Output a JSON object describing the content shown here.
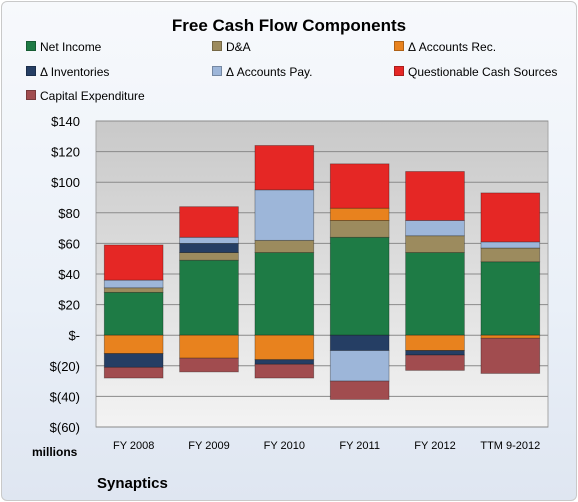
{
  "chart_data": {
    "type": "bar",
    "stacked": true,
    "title": "Free Cash Flow Components",
    "categories": [
      "FY 2008",
      "FY 2009",
      "FY 2010",
      "FY 2011",
      "FY 2012",
      "TTM 9-2012"
    ],
    "series": [
      {
        "name": "Net Income",
        "color": "#1e7b45",
        "values": [
          28,
          49,
          54,
          64,
          54,
          48
        ]
      },
      {
        "name": "D&A",
        "color": "#9c8b5e",
        "values": [
          3,
          5,
          8,
          11,
          11,
          9
        ]
      },
      {
        "name": "Δ Accounts Rec.",
        "color": "#e8821e",
        "values": [
          -12,
          -15,
          -16,
          8,
          -10,
          -2
        ]
      },
      {
        "name": "Δ Inventories",
        "color": "#253e64",
        "values": [
          -9,
          6,
          -3,
          -10,
          -3,
          0
        ]
      },
      {
        "name": "Δ Accounts Pay.",
        "color": "#9db6d9",
        "values": [
          5,
          4,
          33,
          -20,
          10,
          4
        ]
      },
      {
        "name": "Questionable Cash Sources",
        "color": "#e52725",
        "values": [
          23,
          20,
          29,
          29,
          32,
          32
        ]
      },
      {
        "name": "Capital Expenditure",
        "color": "#a14c4f",
        "values": [
          -7,
          -9,
          -9,
          -12,
          -10,
          -23
        ]
      }
    ],
    "ylim": [
      -60,
      140
    ],
    "yticks": [
      140,
      120,
      100,
      80,
      60,
      40,
      20,
      0,
      -20,
      -40,
      -60
    ],
    "ytick_labels": [
      "$140",
      "$120",
      "$100",
      "$80",
      "$60",
      "$40",
      "$20",
      "$-",
      "$(20)",
      "$(40)",
      "$(60)"
    ],
    "grid": true,
    "legend_position": "top",
    "units_label": "millions"
  },
  "footer": {
    "company": "Synaptics"
  }
}
